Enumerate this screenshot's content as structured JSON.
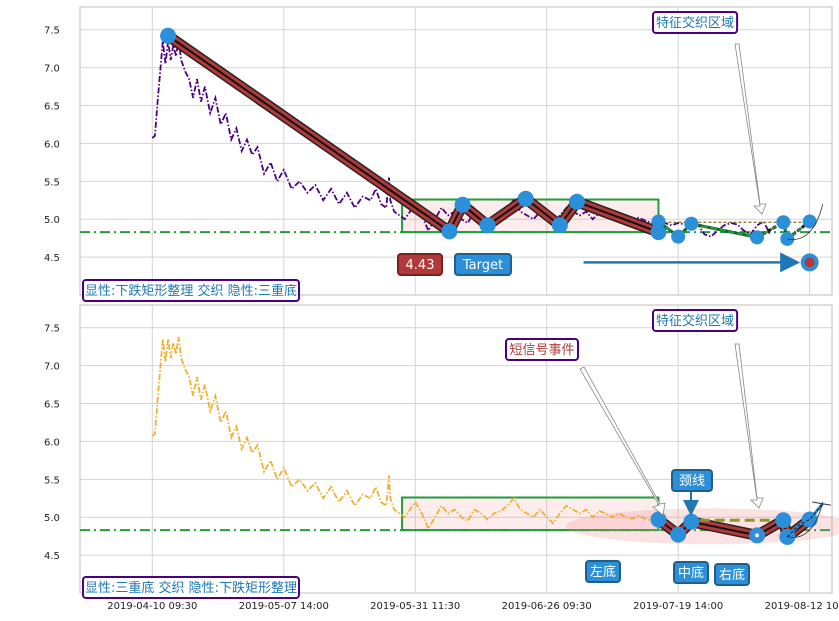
{
  "chart_data": [
    {
      "type": "line",
      "panel": "top",
      "xlabels": [
        "2019-04-10 09:30",
        "2019-05-07 14:00",
        "2019-05-31 11:30",
        "2019-06-26 09:30",
        "2019-07-19 14:00",
        "2019-08-12 10:00"
      ],
      "yticks": [
        "4.5",
        "5.0",
        "5.5",
        "6.0",
        "6.5",
        "7.0",
        "7.5"
      ],
      "ylim": [
        4.0,
        7.8
      ],
      "xlim": [
        -0.55,
        5.17
      ],
      "price_color": "#4b0082",
      "price_points": [
        [
          0.0,
          6.07
        ],
        [
          0.02,
          6.1
        ],
        [
          0.04,
          6.55
        ],
        [
          0.06,
          6.95
        ],
        [
          0.08,
          7.35
        ],
        [
          0.1,
          7.05
        ],
        [
          0.12,
          7.35
        ],
        [
          0.14,
          7.1
        ],
        [
          0.16,
          7.3
        ],
        [
          0.18,
          7.15
        ],
        [
          0.2,
          7.38
        ],
        [
          0.22,
          7.1
        ],
        [
          0.25,
          6.95
        ],
        [
          0.28,
          6.85
        ],
        [
          0.31,
          6.6
        ],
        [
          0.34,
          6.85
        ],
        [
          0.37,
          6.55
        ],
        [
          0.4,
          6.75
        ],
        [
          0.44,
          6.4
        ],
        [
          0.48,
          6.6
        ],
        [
          0.52,
          6.25
        ],
        [
          0.56,
          6.4
        ],
        [
          0.6,
          6.05
        ],
        [
          0.64,
          6.2
        ],
        [
          0.68,
          5.9
        ],
        [
          0.72,
          6.05
        ],
        [
          0.76,
          5.85
        ],
        [
          0.8,
          5.95
        ],
        [
          0.85,
          5.6
        ],
        [
          0.9,
          5.75
        ],
        [
          0.95,
          5.5
        ],
        [
          1.0,
          5.65
        ],
        [
          1.06,
          5.4
        ],
        [
          1.12,
          5.5
        ],
        [
          1.18,
          5.35
        ],
        [
          1.24,
          5.45
        ],
        [
          1.3,
          5.25
        ],
        [
          1.36,
          5.4
        ],
        [
          1.42,
          5.2
        ],
        [
          1.48,
          5.35
        ],
        [
          1.54,
          5.15
        ],
        [
          1.6,
          5.3
        ],
        [
          1.66,
          5.25
        ],
        [
          1.7,
          5.4
        ],
        [
          1.74,
          5.2
        ],
        [
          1.78,
          5.15
        ],
        [
          1.8,
          5.55
        ],
        [
          1.81,
          5.25
        ],
        [
          1.84,
          5.1
        ],
        [
          1.88,
          5.05
        ],
        [
          1.92,
          5.0
        ],
        [
          1.96,
          5.1
        ],
        [
          2.0,
          5.2
        ],
        [
          2.05,
          5.05
        ],
        [
          2.1,
          4.85
        ],
        [
          2.15,
          5.0
        ],
        [
          2.2,
          5.15
        ],
        [
          2.25,
          5.05
        ],
        [
          2.3,
          5.1
        ],
        [
          2.35,
          5.0
        ],
        [
          2.4,
          4.95
        ],
        [
          2.45,
          5.1
        ],
        [
          2.5,
          5.05
        ],
        [
          2.55,
          4.97
        ],
        [
          2.6,
          5.05
        ],
        [
          2.65,
          5.08
        ],
        [
          2.7,
          5.15
        ],
        [
          2.75,
          5.25
        ],
        [
          2.8,
          5.1
        ],
        [
          2.85,
          5.05
        ],
        [
          2.9,
          5.0
        ],
        [
          2.95,
          5.1
        ],
        [
          3.0,
          5.0
        ],
        [
          3.05,
          4.92
        ],
        [
          3.1,
          5.05
        ],
        [
          3.15,
          5.15
        ],
        [
          3.2,
          5.1
        ],
        [
          3.25,
          5.05
        ],
        [
          3.3,
          5.1
        ],
        [
          3.35,
          5.0
        ],
        [
          3.4,
          5.08
        ],
        [
          3.45,
          5.05
        ],
        [
          3.5,
          5.0
        ],
        [
          3.55,
          5.05
        ],
        [
          3.6,
          5.0
        ],
        [
          3.65,
          4.98
        ],
        [
          3.7,
          5.02
        ],
        [
          3.75,
          4.98
        ],
        [
          3.8,
          4.95
        ],
        [
          3.85,
          4.97
        ],
        [
          3.9,
          4.95
        ],
        [
          3.95,
          4.92
        ],
        [
          4.0,
          4.95
        ],
        [
          4.05,
          4.93
        ],
        [
          4.1,
          4.9
        ],
        [
          4.15,
          4.93
        ],
        [
          4.2,
          4.8
        ],
        [
          4.25,
          4.77
        ],
        [
          4.3,
          4.85
        ],
        [
          4.35,
          4.92
        ],
        [
          4.4,
          4.95
        ],
        [
          4.45,
          4.93
        ],
        [
          4.5,
          4.85
        ],
        [
          4.55,
          4.8
        ],
        [
          4.6,
          4.92
        ],
        [
          4.65,
          4.97
        ],
        [
          4.7,
          4.8
        ]
      ],
      "support_level": 4.83,
      "rect_box": {
        "x0": 1.9,
        "x1": 3.85,
        "y0": 4.83,
        "y1": 5.26
      },
      "pattern_pivots": [
        [
          0.12,
          7.42
        ],
        [
          2.26,
          4.84
        ],
        [
          2.36,
          5.19
        ],
        [
          2.55,
          4.92
        ],
        [
          2.84,
          5.27
        ],
        [
          3.1,
          4.92
        ],
        [
          3.23,
          5.23
        ],
        [
          3.85,
          4.83
        ]
      ],
      "event_pivots": [
        [
          3.85,
          4.97
        ],
        [
          4.0,
          4.77
        ],
        [
          4.1,
          4.94
        ],
        [
          4.6,
          4.76
        ],
        [
          4.8,
          4.96
        ],
        [
          4.83,
          4.74
        ],
        [
          5.0,
          4.97
        ]
      ],
      "neckline": [
        [
          3.85,
          4.96
        ],
        [
          5.0,
          4.96
        ]
      ],
      "projection": [
        [
          4.83,
          4.74
        ],
        [
          5.1,
          5.2
        ]
      ],
      "target_point": [
        5.0,
        4.43
      ],
      "target_arrow_from": [
        3.28,
        4.43
      ],
      "annotations": {
        "region_label": "特征交织区域",
        "target_value": "4.43",
        "target_label": "Target",
        "bottom_label": "显性:下跌矩形整理 交织 隐性:三重底"
      }
    },
    {
      "type": "line",
      "panel": "bottom",
      "xlabels": [
        "2019-04-10 09:30",
        "2019-05-07 14:00",
        "2019-05-31 11:30",
        "2019-06-26 09:30",
        "2019-07-19 14:00",
        "2019-08-12 10:00"
      ],
      "yticks": [
        "4.5",
        "5.0",
        "5.5",
        "6.0",
        "6.5",
        "7.0",
        "7.5"
      ],
      "ylim": [
        4.0,
        7.8
      ],
      "xlim": [
        -0.55,
        5.17
      ],
      "price_color": "#f0b030",
      "price_points": [
        [
          0.0,
          6.07
        ],
        [
          0.02,
          6.1
        ],
        [
          0.04,
          6.55
        ],
        [
          0.06,
          6.95
        ],
        [
          0.08,
          7.35
        ],
        [
          0.1,
          7.05
        ],
        [
          0.12,
          7.35
        ],
        [
          0.14,
          7.1
        ],
        [
          0.16,
          7.3
        ],
        [
          0.18,
          7.15
        ],
        [
          0.2,
          7.38
        ],
        [
          0.22,
          7.1
        ],
        [
          0.25,
          6.95
        ],
        [
          0.28,
          6.85
        ],
        [
          0.31,
          6.6
        ],
        [
          0.34,
          6.85
        ],
        [
          0.37,
          6.55
        ],
        [
          0.4,
          6.75
        ],
        [
          0.44,
          6.4
        ],
        [
          0.48,
          6.6
        ],
        [
          0.52,
          6.25
        ],
        [
          0.56,
          6.4
        ],
        [
          0.6,
          6.05
        ],
        [
          0.64,
          6.2
        ],
        [
          0.68,
          5.9
        ],
        [
          0.72,
          6.05
        ],
        [
          0.76,
          5.85
        ],
        [
          0.8,
          5.95
        ],
        [
          0.85,
          5.6
        ],
        [
          0.9,
          5.75
        ],
        [
          0.95,
          5.5
        ],
        [
          1.0,
          5.65
        ],
        [
          1.06,
          5.4
        ],
        [
          1.12,
          5.5
        ],
        [
          1.18,
          5.35
        ],
        [
          1.24,
          5.45
        ],
        [
          1.3,
          5.25
        ],
        [
          1.36,
          5.4
        ],
        [
          1.42,
          5.2
        ],
        [
          1.48,
          5.35
        ],
        [
          1.54,
          5.15
        ],
        [
          1.6,
          5.3
        ],
        [
          1.66,
          5.25
        ],
        [
          1.7,
          5.4
        ],
        [
          1.74,
          5.2
        ],
        [
          1.78,
          5.15
        ],
        [
          1.8,
          5.55
        ],
        [
          1.81,
          5.25
        ],
        [
          1.84,
          5.1
        ],
        [
          1.88,
          5.05
        ],
        [
          1.92,
          5.0
        ],
        [
          1.96,
          5.1
        ],
        [
          2.0,
          5.2
        ],
        [
          2.05,
          5.05
        ],
        [
          2.1,
          4.85
        ],
        [
          2.15,
          5.0
        ],
        [
          2.2,
          5.15
        ],
        [
          2.25,
          5.05
        ],
        [
          2.3,
          5.1
        ],
        [
          2.35,
          5.0
        ],
        [
          2.4,
          4.95
        ],
        [
          2.45,
          5.1
        ],
        [
          2.5,
          5.05
        ],
        [
          2.55,
          4.97
        ],
        [
          2.6,
          5.05
        ],
        [
          2.65,
          5.08
        ],
        [
          2.7,
          5.15
        ],
        [
          2.75,
          5.25
        ],
        [
          2.8,
          5.1
        ],
        [
          2.85,
          5.05
        ],
        [
          2.9,
          5.0
        ],
        [
          2.95,
          5.1
        ],
        [
          3.0,
          5.0
        ],
        [
          3.05,
          4.92
        ],
        [
          3.1,
          5.05
        ],
        [
          3.15,
          5.15
        ],
        [
          3.2,
          5.1
        ],
        [
          3.25,
          5.05
        ],
        [
          3.3,
          5.1
        ],
        [
          3.35,
          5.0
        ],
        [
          3.4,
          5.08
        ],
        [
          3.45,
          5.05
        ],
        [
          3.5,
          5.0
        ],
        [
          3.55,
          5.05
        ],
        [
          3.6,
          5.0
        ],
        [
          3.65,
          4.98
        ],
        [
          3.7,
          5.02
        ],
        [
          3.75,
          4.98
        ],
        [
          3.8,
          4.95
        ],
        [
          3.85,
          4.97
        ]
      ],
      "support_level": 4.83,
      "rect_box": {
        "x0": 1.9,
        "x1": 3.85,
        "y0": 4.83,
        "y1": 5.26
      },
      "pattern_pivots": [
        [
          3.85,
          4.97
        ],
        [
          4.0,
          4.77
        ],
        [
          4.1,
          4.94
        ],
        [
          4.6,
          4.76
        ],
        [
          4.8,
          4.96
        ],
        [
          4.83,
          4.74
        ],
        [
          5.0,
          4.97
        ]
      ],
      "neckline": [
        [
          4.05,
          4.96
        ],
        [
          4.7,
          4.96
        ]
      ],
      "projection": [
        [
          4.83,
          4.74
        ],
        [
          5.1,
          5.2
        ]
      ],
      "annotations": {
        "region_label": "特征交织区域",
        "event_label": "短信号事件",
        "neck_label": "颈线",
        "left_bottom": "左底",
        "mid_bottom": "中底",
        "right_bottom": "右底",
        "bottom_label": "显性:三重底 交织 隐性:下跌矩形整理"
      }
    }
  ]
}
